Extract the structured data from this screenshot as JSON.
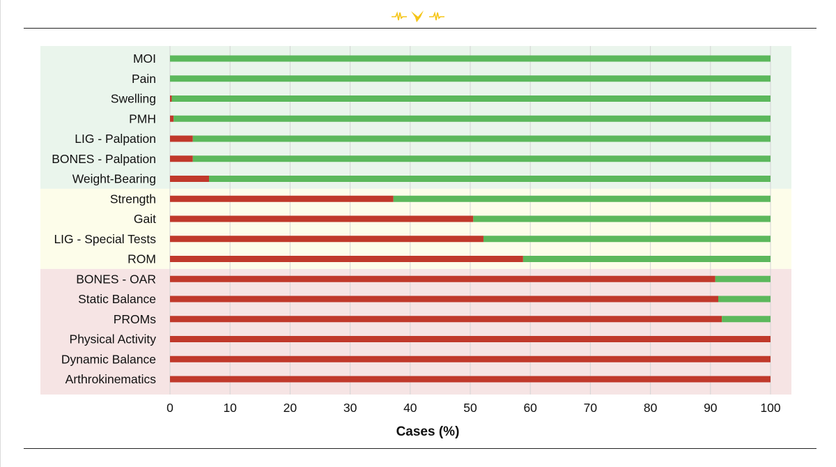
{
  "chart_data": {
    "type": "bar",
    "stacked": true,
    "orientation": "horizontal",
    "categories": [
      "MOI",
      "Pain",
      "Swelling",
      "PMH",
      "LIG - Palpation",
      "BONES - Palpation",
      "Weight-Bearing",
      "Strength",
      "Gait",
      "LIG - Special Tests",
      "ROM",
      "BONES - OAR",
      "Static Balance",
      "PROMs",
      "Physical Activity",
      "Dynamic Balance",
      "Arthrokinematics"
    ],
    "series": [
      {
        "color": "#c0392b",
        "values": [
          0,
          0,
          0.3,
          0.6,
          3.8,
          3.8,
          6.5,
          37.2,
          50.5,
          52.2,
          58.8,
          90.8,
          91.3,
          91.9,
          100,
          100,
          100
        ]
      },
      {
        "color": "#5cb85c",
        "values": [
          100,
          100,
          99.7,
          99.4,
          96.2,
          96.2,
          93.5,
          62.8,
          49.5,
          47.8,
          41.2,
          9.2,
          8.7,
          8.1,
          0,
          0,
          0
        ]
      }
    ],
    "bands": [
      {
        "from": 0,
        "to": 6,
        "color": "#eaf5ec"
      },
      {
        "from": 7,
        "to": 10,
        "color": "#fdfdea"
      },
      {
        "from": 11,
        "to": 16,
        "color": "#f6e4e4"
      }
    ],
    "xlabel": "Cases (%)",
    "xlim": [
      0,
      100
    ],
    "xticks": [
      "0",
      "10",
      "20",
      "30",
      "40",
      "50",
      "60",
      "70",
      "80",
      "90",
      "100"
    ],
    "grid": true
  },
  "logo": {
    "name": "heartbeat-bird-logo",
    "color": "#f5c518"
  }
}
